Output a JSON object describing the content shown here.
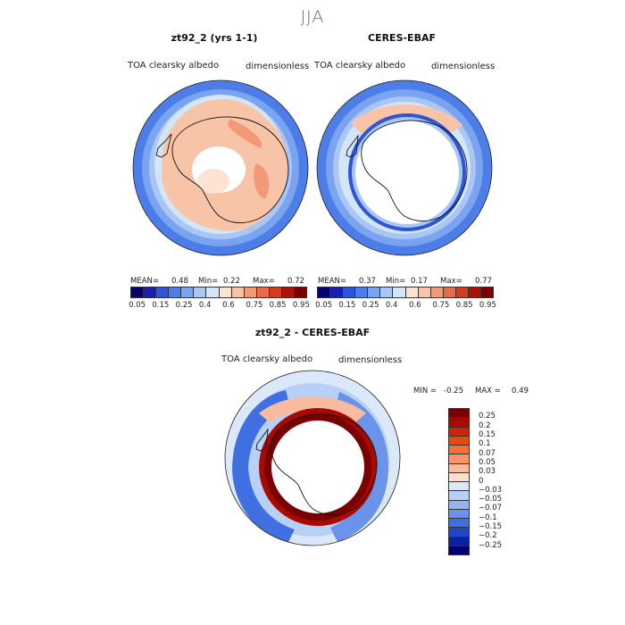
{
  "season_title": "JJA",
  "left_panel": {
    "title": "zt92_2 (yrs 1-1)",
    "variable": "TOA clearsky albedo",
    "units": "dimensionless",
    "stats": {
      "mean_label": "MEAN=",
      "mean": "0.48",
      "min_label": "Min=",
      "min": "0.22",
      "max_label": "Max=",
      "max": "0.72"
    },
    "colorbar_ticks": [
      "0.05",
      "0.15",
      "0.25",
      "0.4",
      "0.6",
      "0.75",
      "0.85",
      "0.95"
    ]
  },
  "right_panel": {
    "title": "CERES-EBAF",
    "variable": "TOA clearsky albedo",
    "units": "dimensionless",
    "stats": {
      "mean_label": "MEAN=",
      "mean": "0.37",
      "min_label": "Min=",
      "min": "0.17",
      "max_label": "Max=",
      "max": "0.77"
    },
    "colorbar_ticks": [
      "0.05",
      "0.15",
      "0.25",
      "0.4",
      "0.6",
      "0.75",
      "0.85",
      "0.95"
    ]
  },
  "diff_panel": {
    "title": "zt92_2 - CERES-EBAF",
    "variable": "TOA clearsky albedo",
    "units": "dimensionless",
    "min_label": "MIN =",
    "min": "-0.25",
    "max_label": "MAX =",
    "max": "0.49",
    "colorbar_ticks": [
      "0.25",
      "0.2",
      "0.15",
      "0.1",
      "0.07",
      "0.05",
      "0.03",
      "0",
      "−0.03",
      "−0.05",
      "−0.07",
      "−0.1",
      "−0.15",
      "−0.2",
      "−0.25"
    ]
  },
  "colors": {
    "abs_scale": [
      "#08006b",
      "#1a1fae",
      "#2d55d6",
      "#4d7ee8",
      "#7aa3f0",
      "#a9c6f5",
      "#d5e5f8",
      "#fde3d2",
      "#f8c4a8",
      "#f19a75",
      "#e66b46",
      "#d23c1e",
      "#a81406",
      "#7a0000"
    ],
    "diff_scale": [
      "#7a0000",
      "#a90a00",
      "#cf2400",
      "#e9480e",
      "#f56f37",
      "#f8956c",
      "#f9bb9f",
      "#fce1d1",
      "#dbe8fa",
      "#b9d0f6",
      "#93b4f1",
      "#6a94ea",
      "#3f6fe0",
      "#1f48c8",
      "#0a22a0",
      "#03006d"
    ],
    "coast": "#111111"
  }
}
